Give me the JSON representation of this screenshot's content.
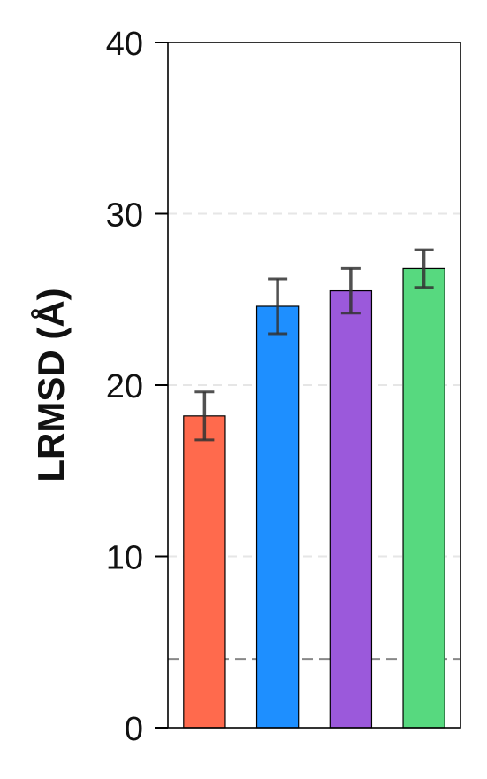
{
  "chart_data": {
    "type": "bar",
    "title": "",
    "xlabel": "",
    "ylabel": "LRMSD (Å)",
    "ylim": [
      0,
      40
    ],
    "yticks": [
      0,
      10,
      20,
      30,
      40
    ],
    "categories": [
      "",
      "",
      "",
      ""
    ],
    "values": [
      18.2,
      24.6,
      25.5,
      26.8
    ],
    "errors": [
      1.4,
      1.6,
      1.3,
      1.1
    ],
    "colors": [
      "#FF6A4D",
      "#1E8FFF",
      "#9B59DB",
      "#57D97F"
    ],
    "reference_line": {
      "value": 4,
      "style": "dashed",
      "color": "#888888"
    },
    "grid": "horizontal dashed",
    "legend": "none"
  }
}
